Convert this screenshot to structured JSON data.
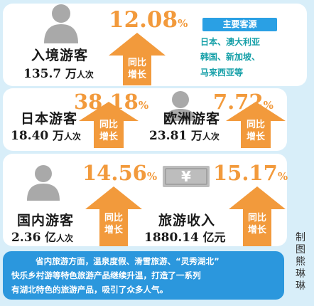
{
  "inbound": {
    "percent": "12.08",
    "percent_sign": "%",
    "label": "入境游客",
    "number": "135.7",
    "unit": "万",
    "unit_suffix": "人次",
    "arrow_top": "同比",
    "arrow_bottom": "增长"
  },
  "sources": {
    "title": "主要客源",
    "lines": [
      "日本、澳大利亚",
      "韩国、新加坡、",
      "马来西亚等"
    ]
  },
  "japan": {
    "percent": "38.18",
    "percent_sign": "%",
    "label": "日本游客",
    "number": "18.40",
    "unit": "万",
    "unit_suffix": "人次",
    "arrow_top": "同比",
    "arrow_bottom": "增长"
  },
  "europe": {
    "percent": "7.72",
    "percent_sign": "%",
    "label": "欧洲游客",
    "number": "23.81",
    "unit": "万",
    "unit_suffix": "人次",
    "arrow_top": "同比",
    "arrow_bottom": "增长"
  },
  "domestic": {
    "percent": "14.56",
    "percent_sign": "%",
    "label": "国内游客",
    "number": "2.36",
    "unit": "亿",
    "unit_suffix": "人次",
    "arrow_top": "同比",
    "arrow_bottom": "增长"
  },
  "revenue": {
    "percent": "15.17",
    "percent_sign": "%",
    "label": "旅游收入",
    "number": "1880.14",
    "unit": "亿元",
    "money_symbol": "¥",
    "arrow_top": "同比",
    "arrow_bottom": "增长"
  },
  "summary": [
    "省内旅游方面，温泉度假、滑雪旅游、“灵秀湖北”",
    "快乐乡村游等特色旅游产品继续升温，打造了一系列",
    "有湖北特色的旅游产品，吸引了众多人气。"
  ],
  "credit": [
    "制",
    "图",
    "熊",
    "琳",
    "琳"
  ],
  "colors": {
    "orange": "#f29a3c",
    "blue": "#2b97dd",
    "teal": "#16a0a8",
    "gray": "#a9a9a9",
    "background": "#d8eef9"
  }
}
